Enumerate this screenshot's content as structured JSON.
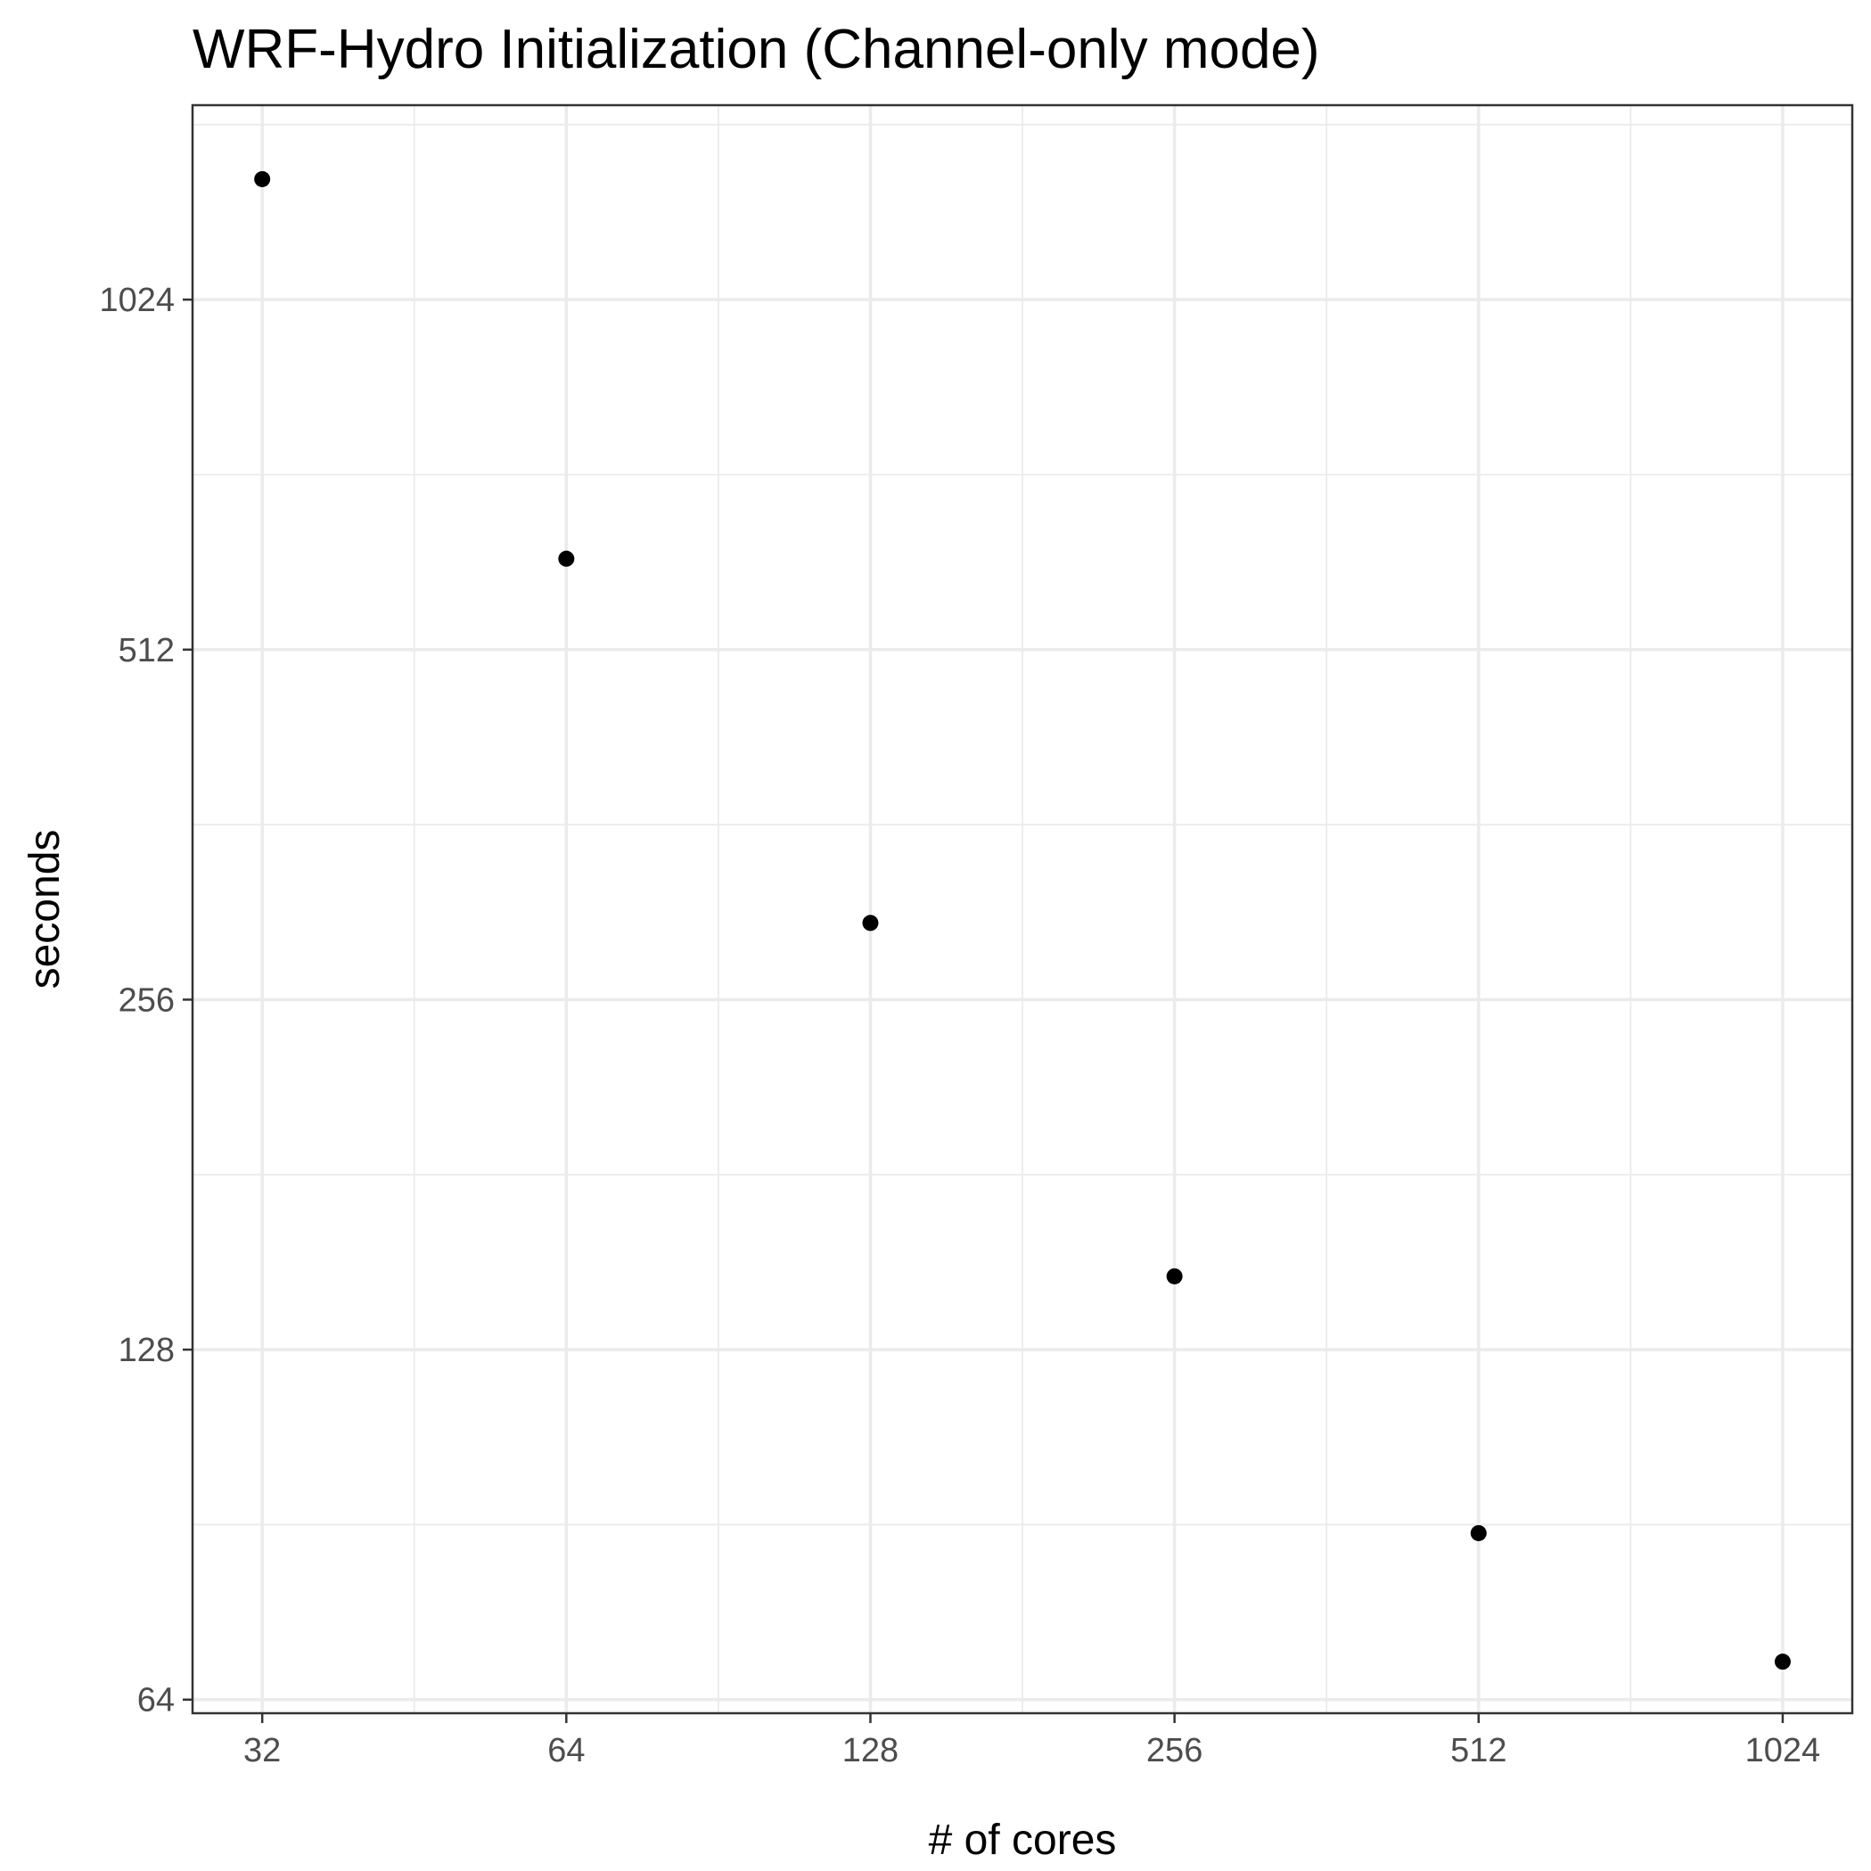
{
  "chart_data": {
    "type": "scatter",
    "title": "WRF-Hydro Initialization (Channel-only mode)",
    "xlabel": "# of cores",
    "ylabel": "seconds",
    "x_scale": "log2",
    "y_scale": "log2",
    "x": [
      32,
      64,
      128,
      256,
      512,
      1024
    ],
    "y": [
      1300,
      613,
      298,
      148,
      89,
      69
    ],
    "x_ticks": [
      32,
      64,
      128,
      256,
      512,
      1024
    ],
    "x_tick_labels": [
      "32",
      "64",
      "128",
      "256",
      "512",
      "1024"
    ],
    "y_ticks": [
      64,
      128,
      256,
      512,
      1024
    ],
    "y_tick_labels": [
      "64",
      "128",
      "256",
      "512",
      "1024"
    ],
    "xlim": [
      27.3,
      1200
    ],
    "ylim": [
      62.3,
      1505
    ],
    "grid": true,
    "legend": "none",
    "colors": {
      "point": "#000000",
      "grid": "#ebebeb",
      "border": "#333333",
      "tick_text": "#4d4d4d",
      "background": "#ffffff"
    }
  }
}
